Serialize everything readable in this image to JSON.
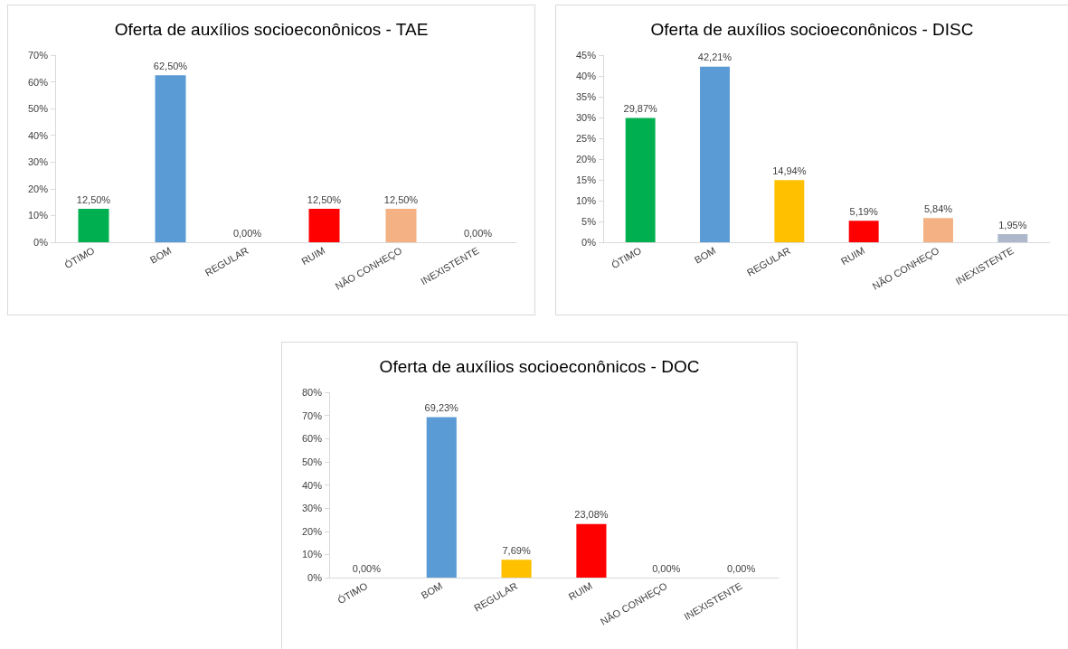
{
  "chart_data": [
    {
      "type": "bar",
      "title": "Oferta de auxílios socioeconônicos - TAE",
      "categories": [
        "ÓTIMO",
        "BOM",
        "REGULAR",
        "RUIM",
        "NÃO CONHEÇO",
        "INEXISTENTE"
      ],
      "values": [
        12.5,
        62.5,
        0,
        12.5,
        12.5,
        0
      ],
      "colors": [
        "#00b050",
        "#5b9bd5",
        "#ffc000",
        "#ff0000",
        "#f4b183",
        "#adb9ca"
      ],
      "value_labels": [
        "12,50%",
        "62,50%",
        "0,00%",
        "12,50%",
        "12,50%",
        "0,00%"
      ],
      "ylim": [
        0,
        70
      ],
      "yticks": [
        {
          "value": 0,
          "label": "0%"
        },
        {
          "value": 10,
          "label": "10%"
        },
        {
          "value": 20,
          "label": "20%"
        },
        {
          "value": 30,
          "label": "30%"
        },
        {
          "value": 40,
          "label": "40%"
        },
        {
          "value": 50,
          "label": "50%"
        },
        {
          "value": 60,
          "label": "60%"
        },
        {
          "value": 70,
          "label": "70%"
        }
      ],
      "grid": false
    },
    {
      "type": "bar",
      "title": "Oferta de auxílios socioeconônicos - DISC",
      "categories": [
        "ÓTIMO",
        "BOM",
        "REGULAR",
        "RUIM",
        "NÃO CONHEÇO",
        "INEXISTENTE"
      ],
      "values": [
        29.87,
        42.21,
        14.94,
        5.19,
        5.84,
        1.95
      ],
      "colors": [
        "#00b050",
        "#5b9bd5",
        "#ffc000",
        "#ff0000",
        "#f4b183",
        "#adb9ca"
      ],
      "value_labels": [
        "29,87%",
        "42,21%",
        "14,94%",
        "5,19%",
        "5,84%",
        "1,95%"
      ],
      "ylim": [
        0,
        45
      ],
      "yticks": [
        {
          "value": 0,
          "label": "0%"
        },
        {
          "value": 5,
          "label": "5%"
        },
        {
          "value": 10,
          "label": "10%"
        },
        {
          "value": 15,
          "label": "15%"
        },
        {
          "value": 20,
          "label": "20%"
        },
        {
          "value": 25,
          "label": "25%"
        },
        {
          "value": 30,
          "label": "30%"
        },
        {
          "value": 35,
          "label": "35%"
        },
        {
          "value": 40,
          "label": "40%"
        },
        {
          "value": 45,
          "label": "45%"
        }
      ],
      "grid": false
    },
    {
      "type": "bar",
      "title": "Oferta de auxílios socioeconônicos - DOC",
      "categories": [
        "ÓTIMO",
        "BOM",
        "REGULAR",
        "RUIM",
        "NÃO CONHEÇO",
        "INEXISTENTE"
      ],
      "values": [
        0,
        69.23,
        7.69,
        23.08,
        0,
        0
      ],
      "colors": [
        "#00b050",
        "#5b9bd5",
        "#ffc000",
        "#ff0000",
        "#f4b183",
        "#adb9ca"
      ],
      "value_labels": [
        "0,00%",
        "69,23%",
        "7,69%",
        "23,08%",
        "0,00%",
        "0,00%"
      ],
      "ylim": [
        0,
        80
      ],
      "yticks": [
        {
          "value": 0,
          "label": "0%"
        },
        {
          "value": 10,
          "label": "10%"
        },
        {
          "value": 20,
          "label": "20%"
        },
        {
          "value": 30,
          "label": "30%"
        },
        {
          "value": 40,
          "label": "40%"
        },
        {
          "value": 50,
          "label": "50%"
        },
        {
          "value": 60,
          "label": "60%"
        },
        {
          "value": 70,
          "label": "70%"
        },
        {
          "value": 80,
          "label": "80%"
        }
      ],
      "grid": false
    }
  ]
}
